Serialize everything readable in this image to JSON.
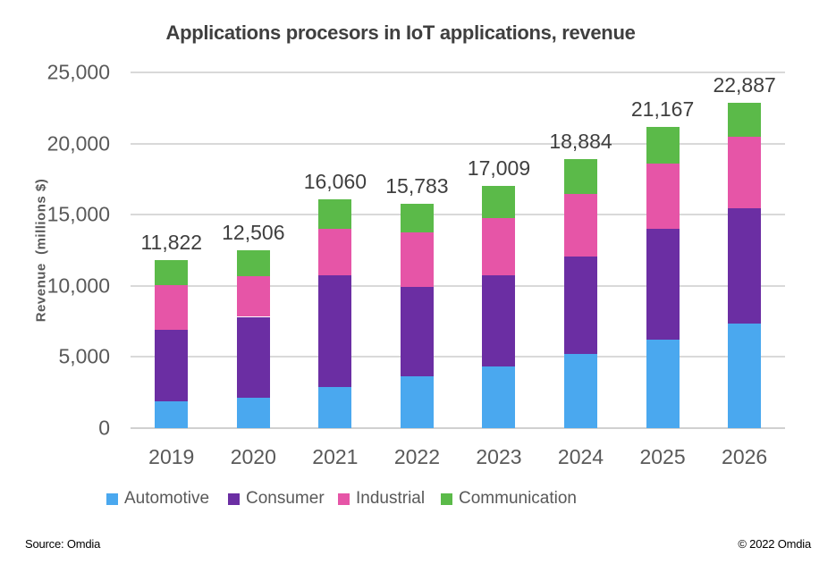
{
  "chart_data": {
    "type": "bar",
    "stacked": true,
    "title": "Applications procesors in IoT applications, revenue",
    "ylabel": "Revenue  (millions $)",
    "categories": [
      "2019",
      "2020",
      "2021",
      "2022",
      "2023",
      "2024",
      "2025",
      "2026"
    ],
    "series": [
      {
        "name": "Automotive",
        "color": "#4aa8ef",
        "values": [
          1900,
          2110,
          2860,
          3620,
          4310,
          5195,
          6200,
          7320
        ]
      },
      {
        "name": "Consumer",
        "color": "#6b2ea3",
        "values": [
          5040,
          5710,
          7860,
          6300,
          6445,
          6885,
          7830,
          8140
        ]
      },
      {
        "name": "Industrial",
        "color": "#e655a7",
        "values": [
          3090,
          2835,
          3290,
          3820,
          3990,
          4405,
          4560,
          4990
        ]
      },
      {
        "name": "Communication",
        "color": "#5bba49",
        "values": [
          1792,
          1851,
          2050,
          2043,
          2264,
          2399,
          2577,
          2437
        ]
      }
    ],
    "totals": [
      11822,
      12506,
      16060,
      15783,
      17009,
      18884,
      21167,
      22887
    ],
    "total_labels": [
      "11,822",
      "12,506",
      "16,060",
      "15,783",
      "17,009",
      "18,884",
      "21,167",
      "22,887"
    ],
    "ylim": [
      0,
      25000
    ],
    "ytick_step": 5000,
    "ytick_labels": [
      "0",
      "5,000",
      "10,000",
      "15,000",
      "20,000",
      "25,000"
    ],
    "grid": true,
    "legend_position": "bottom",
    "colors": {
      "gridline": "#d9d9d9",
      "axis_text": "#595959",
      "label_text": "#3f3f3f",
      "background": "#ffffff"
    }
  },
  "footer": {
    "source": "Source: Omdia",
    "copyright": "© 2022 Omdia"
  }
}
